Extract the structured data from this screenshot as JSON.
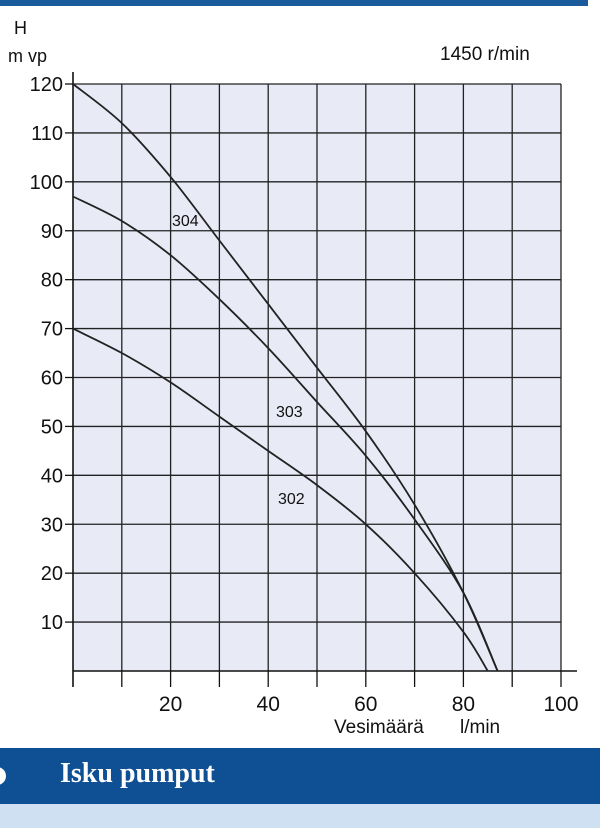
{
  "chart_data": {
    "type": "line",
    "y_axis_label": "H",
    "y_axis_unit": "m vp",
    "x_axis_label": "Vesimäärä",
    "x_axis_unit": "l/min",
    "speed_annotation": "1450  r/min",
    "xlim": [
      0,
      100
    ],
    "ylim": [
      0,
      120
    ],
    "x_ticks": [
      20,
      40,
      60,
      80,
      100
    ],
    "y_ticks": [
      10,
      20,
      30,
      40,
      50,
      60,
      70,
      80,
      90,
      100,
      110,
      120
    ],
    "grid": true,
    "series": [
      {
        "name": "304",
        "points": [
          [
            0,
            120
          ],
          [
            10,
            112
          ],
          [
            20,
            101
          ],
          [
            30,
            88
          ],
          [
            40,
            75
          ],
          [
            50,
            62
          ],
          [
            60,
            49
          ],
          [
            70,
            34
          ],
          [
            80,
            16
          ],
          [
            87,
            0
          ]
        ]
      },
      {
        "name": "303",
        "points": [
          [
            0,
            97
          ],
          [
            10,
            92
          ],
          [
            20,
            85
          ],
          [
            30,
            76
          ],
          [
            40,
            66
          ],
          [
            50,
            55
          ],
          [
            60,
            44
          ],
          [
            70,
            31
          ],
          [
            80,
            16
          ],
          [
            87,
            0
          ]
        ]
      },
      {
        "name": "302",
        "points": [
          [
            0,
            70
          ],
          [
            10,
            65
          ],
          [
            20,
            59
          ],
          [
            30,
            52
          ],
          [
            40,
            45
          ],
          [
            50,
            38
          ],
          [
            60,
            30
          ],
          [
            70,
            20
          ],
          [
            80,
            8
          ],
          [
            85,
            0
          ]
        ]
      }
    ]
  },
  "colors": {
    "plot_background": "#e8eaf6",
    "grid": "#222222",
    "curve": "#222222",
    "header_bar": "#0f4f93",
    "bottom_strip": "#cfe0f2"
  },
  "section": {
    "title": "Isku pumput"
  }
}
